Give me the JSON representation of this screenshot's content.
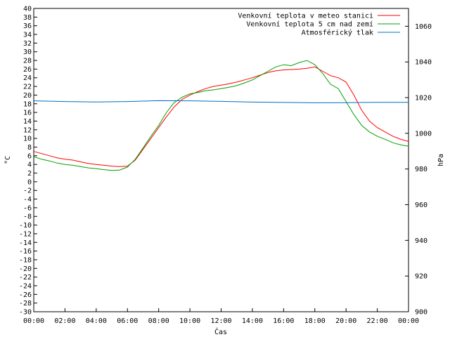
{
  "chart_data": {
    "type": "line",
    "xlabel": "Čas",
    "ylabel": "°C",
    "y2label": "hPa",
    "xlim": [
      0,
      24
    ],
    "ylim": [
      -30,
      40
    ],
    "y2lim": [
      900,
      1070
    ],
    "x_ticks": [
      "00:00",
      "02:00",
      "04:00",
      "06:00",
      "08:00",
      "10:00",
      "12:00",
      "14:00",
      "16:00",
      "18:00",
      "20:00",
      "22:00",
      "00:00"
    ],
    "y_ticks": [
      -30,
      -28,
      -26,
      -24,
      -22,
      -20,
      -18,
      -16,
      -14,
      -12,
      -10,
      -8,
      -6,
      -4,
      -2,
      0,
      2,
      4,
      6,
      8,
      10,
      12,
      14,
      16,
      18,
      20,
      22,
      24,
      26,
      28,
      30,
      32,
      34,
      36,
      38,
      40
    ],
    "y2_ticks": [
      900,
      920,
      940,
      960,
      980,
      1000,
      1020,
      1040,
      1060
    ],
    "legend_position": "top-right",
    "grid": false,
    "series": [
      {
        "name": "Venkovní teplota v meteo stanici",
        "color": "#ff0000",
        "axis": "left",
        "x": [
          0,
          0.5,
          1,
          1.5,
          2,
          2.5,
          3,
          3.5,
          4,
          4.5,
          5,
          5.5,
          6,
          6.5,
          7,
          7.5,
          8,
          8.5,
          9,
          9.5,
          10,
          10.5,
          11,
          11.5,
          12,
          12.5,
          13,
          13.5,
          14,
          14.5,
          15,
          15.5,
          16,
          16.5,
          17,
          17.5,
          18,
          18.5,
          19,
          19.5,
          20,
          20.5,
          21,
          21.5,
          22,
          22.5,
          23,
          23.5,
          24
        ],
        "values": [
          7.0,
          6.5,
          6.0,
          5.5,
          5.2,
          5.0,
          4.6,
          4.2,
          4.0,
          3.8,
          3.6,
          3.5,
          3.6,
          5.0,
          7.5,
          10.0,
          12.5,
          15.0,
          17.3,
          19.0,
          20.0,
          20.8,
          21.5,
          22.0,
          22.3,
          22.6,
          23.0,
          23.5,
          24.0,
          24.6,
          25.2,
          25.6,
          25.8,
          25.9,
          26.0,
          26.2,
          26.5,
          25.5,
          24.5,
          24.0,
          23.0,
          20.0,
          16.5,
          14.0,
          12.5,
          11.5,
          10.5,
          9.8,
          9.3
        ]
      },
      {
        "name": "Venkovní teplota 5 cm nad zemí",
        "color": "#00a000",
        "axis": "left",
        "x": [
          0,
          0.5,
          1,
          1.5,
          2,
          2.5,
          3,
          3.5,
          4,
          4.5,
          5,
          5.5,
          6,
          6.5,
          7,
          7.5,
          8,
          8.5,
          9,
          9.5,
          10,
          10.5,
          11,
          11.5,
          12,
          12.5,
          13,
          13.5,
          14,
          14.5,
          15,
          15.5,
          16,
          16.5,
          17,
          17.5,
          18,
          18.5,
          19,
          19.5,
          20,
          20.5,
          21,
          21.5,
          22,
          22.5,
          23,
          23.5,
          24
        ],
        "values": [
          5.8,
          5.2,
          4.8,
          4.3,
          4.0,
          3.8,
          3.5,
          3.2,
          3.0,
          2.8,
          2.6,
          2.7,
          3.4,
          5.2,
          7.8,
          10.5,
          13.0,
          16.0,
          18.3,
          19.5,
          20.3,
          20.6,
          21.0,
          21.2,
          21.5,
          21.8,
          22.2,
          22.8,
          23.5,
          24.5,
          25.5,
          26.5,
          27.0,
          26.8,
          27.5,
          28.0,
          27.0,
          25.0,
          22.5,
          21.5,
          18.5,
          15.5,
          13.0,
          11.5,
          10.5,
          9.8,
          9.0,
          8.5,
          8.2
        ]
      },
      {
        "name": "Atmosférický tlak",
        "color": "#0070c0",
        "axis": "right",
        "x": [
          0,
          2,
          4,
          6,
          8,
          10,
          12,
          14,
          16,
          18,
          20,
          22,
          24
        ],
        "values": [
          1018.2,
          1017.8,
          1017.6,
          1017.8,
          1018.3,
          1018.2,
          1017.9,
          1017.5,
          1017.3,
          1017.1,
          1017.2,
          1017.4,
          1017.4
        ]
      }
    ]
  }
}
